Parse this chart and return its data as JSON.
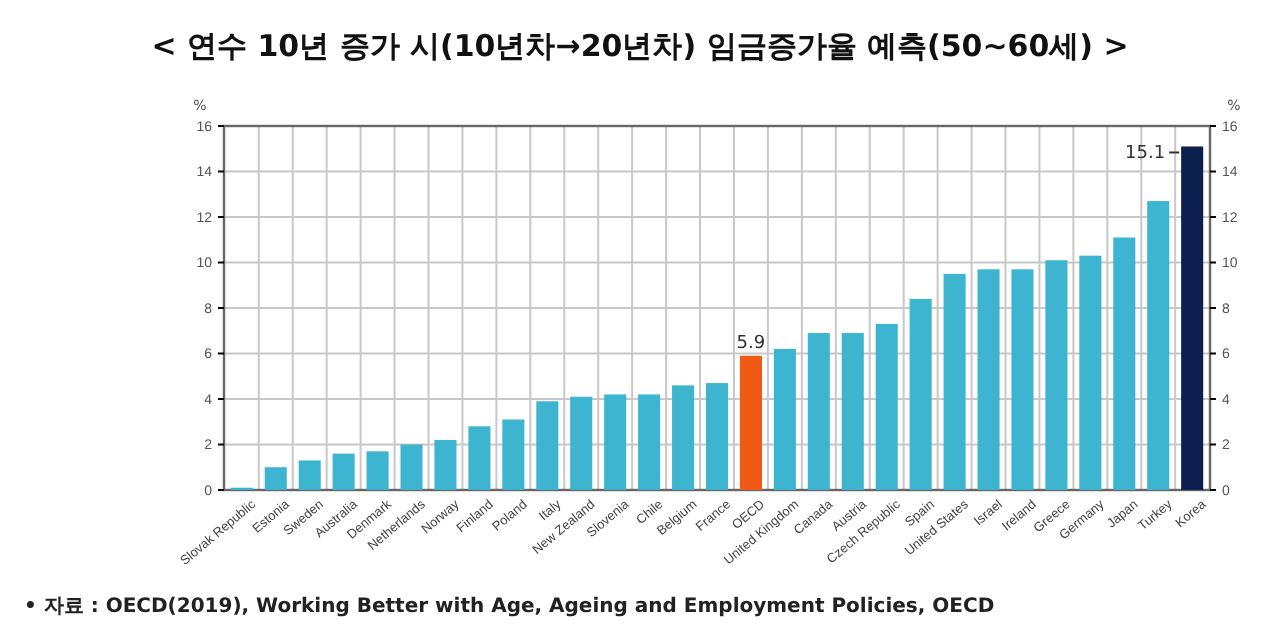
{
  "chart_data": {
    "type": "bar",
    "title": "< 연수 10년 증가 시(10년차→20년차) 임금증가율 예측(50~60세) >",
    "categories": [
      "Slovak Republic",
      "Estonia",
      "Sweden",
      "Australia",
      "Denmark",
      "Netherlands",
      "Norway",
      "Finland",
      "Poland",
      "Italy",
      "New Zealand",
      "Slovenia",
      "Chile",
      "Belgium",
      "France",
      "OECD",
      "United Kingdom",
      "Canada",
      "Austria",
      "Czech Republic",
      "Spain",
      "United States",
      "Israel",
      "Ireland",
      "Greece",
      "Germany",
      "Japan",
      "Turkey",
      "Korea"
    ],
    "values": [
      0.1,
      1.0,
      1.3,
      1.6,
      1.7,
      2.0,
      2.2,
      2.8,
      3.1,
      3.9,
      4.1,
      4.2,
      4.2,
      4.6,
      4.7,
      5.9,
      6.2,
      6.9,
      6.9,
      7.3,
      8.4,
      9.5,
      9.7,
      9.7,
      10.1,
      10.3,
      11.1,
      12.7,
      15.1
    ],
    "colors": [
      "#3db5d0",
      "#3db5d0",
      "#3db5d0",
      "#3db5d0",
      "#3db5d0",
      "#3db5d0",
      "#3db5d0",
      "#3db5d0",
      "#3db5d0",
      "#3db5d0",
      "#3db5d0",
      "#3db5d0",
      "#3db5d0",
      "#3db5d0",
      "#3db5d0",
      "#f05a14",
      "#3db5d0",
      "#3db5d0",
      "#3db5d0",
      "#3db5d0",
      "#3db5d0",
      "#3db5d0",
      "#3db5d0",
      "#3db5d0",
      "#3db5d0",
      "#3db5d0",
      "#3db5d0",
      "#3db5d0",
      "#0d1f4f"
    ],
    "value_labels": [
      null,
      null,
      null,
      null,
      null,
      null,
      null,
      null,
      null,
      null,
      null,
      null,
      null,
      null,
      null,
      "5.9",
      null,
      null,
      null,
      null,
      null,
      null,
      null,
      null,
      null,
      null,
      null,
      null,
      "15.1"
    ],
    "ylabel": "%",
    "y2label": "%",
    "ylim": [
      0,
      16
    ],
    "yticks": [
      0,
      2,
      4,
      6,
      8,
      10,
      12,
      14,
      16
    ],
    "y2lim": [
      0,
      16
    ],
    "y2ticks": [
      0,
      2,
      4,
      6,
      8,
      10,
      12,
      14,
      16
    ],
    "grid": true,
    "annotations": [
      "• 자료 : OECD(2019), Working Better with Age, Ageing and Employment Policies, OECD"
    ]
  }
}
